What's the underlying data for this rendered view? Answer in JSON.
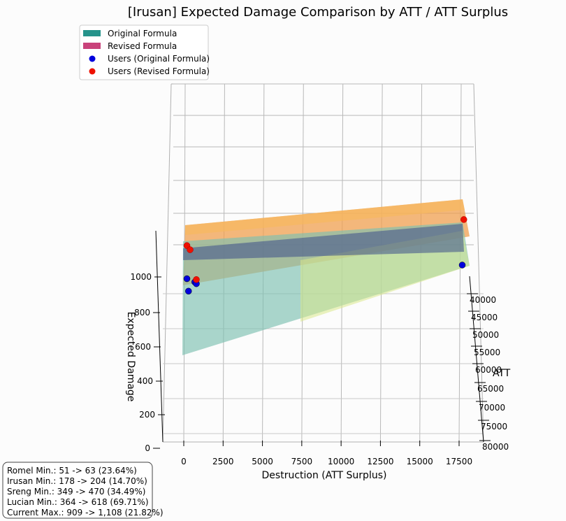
{
  "chart_data": {
    "type": "surface3d",
    "title": "[Irusan] Expected Damage Comparison by ATT / ATT Surplus",
    "xlabel": "Destruction (ATT Surplus)",
    "ylabel": "ATT",
    "zlabel": "Expected Damage",
    "x_ticks": [
      "0",
      "2500",
      "5000",
      "7500",
      "10000",
      "12500",
      "15000",
      "17500"
    ],
    "y_ticks": [
      "40000",
      "45000",
      "50000",
      "55000",
      "60000",
      "65000",
      "70000",
      "75000",
      "80000"
    ],
    "z_ticks": [
      "0",
      "200",
      "400",
      "600",
      "800",
      "1000"
    ],
    "xlim": [
      -1000,
      19000
    ],
    "ylim": [
      38000,
      80000
    ],
    "legend_position": "top-left",
    "legend": [
      {
        "label": "Original Formula",
        "kind": "patch",
        "color": "#26938b"
      },
      {
        "label": "Revised Formula",
        "kind": "patch",
        "color": "#c9427a"
      },
      {
        "label": "Users (Original Formula)",
        "kind": "dot",
        "color": "#0000dd"
      },
      {
        "label": "Users (Revised Formula)",
        "kind": "dot",
        "color": "#ee1100"
      }
    ],
    "annotation_lines": [
      "Romel Min.: 51 -> 63 (23.64%)",
      "Irusan Min.: 178 -> 204 (14.70%)",
      "Sreng Min.: 349 -> 470 (34.49%)",
      "Lucian Min.: 364 -> 618 (69.71%)",
      "Current Max.: 909 -> 1,108 (21.82%)"
    ],
    "users_original": [
      {
        "x": 200,
        "z": 985
      },
      {
        "x": 700,
        "z": 965
      },
      {
        "x": 800,
        "z": 955
      },
      {
        "x": 300,
        "z": 910
      },
      {
        "x": 17700,
        "z": 1000
      }
    ],
    "users_revised": [
      {
        "x": 200,
        "z": 1185
      },
      {
        "x": 400,
        "z": 1160
      },
      {
        "x": 800,
        "z": 980
      },
      {
        "x": 17800,
        "z": 1300
      }
    ]
  }
}
